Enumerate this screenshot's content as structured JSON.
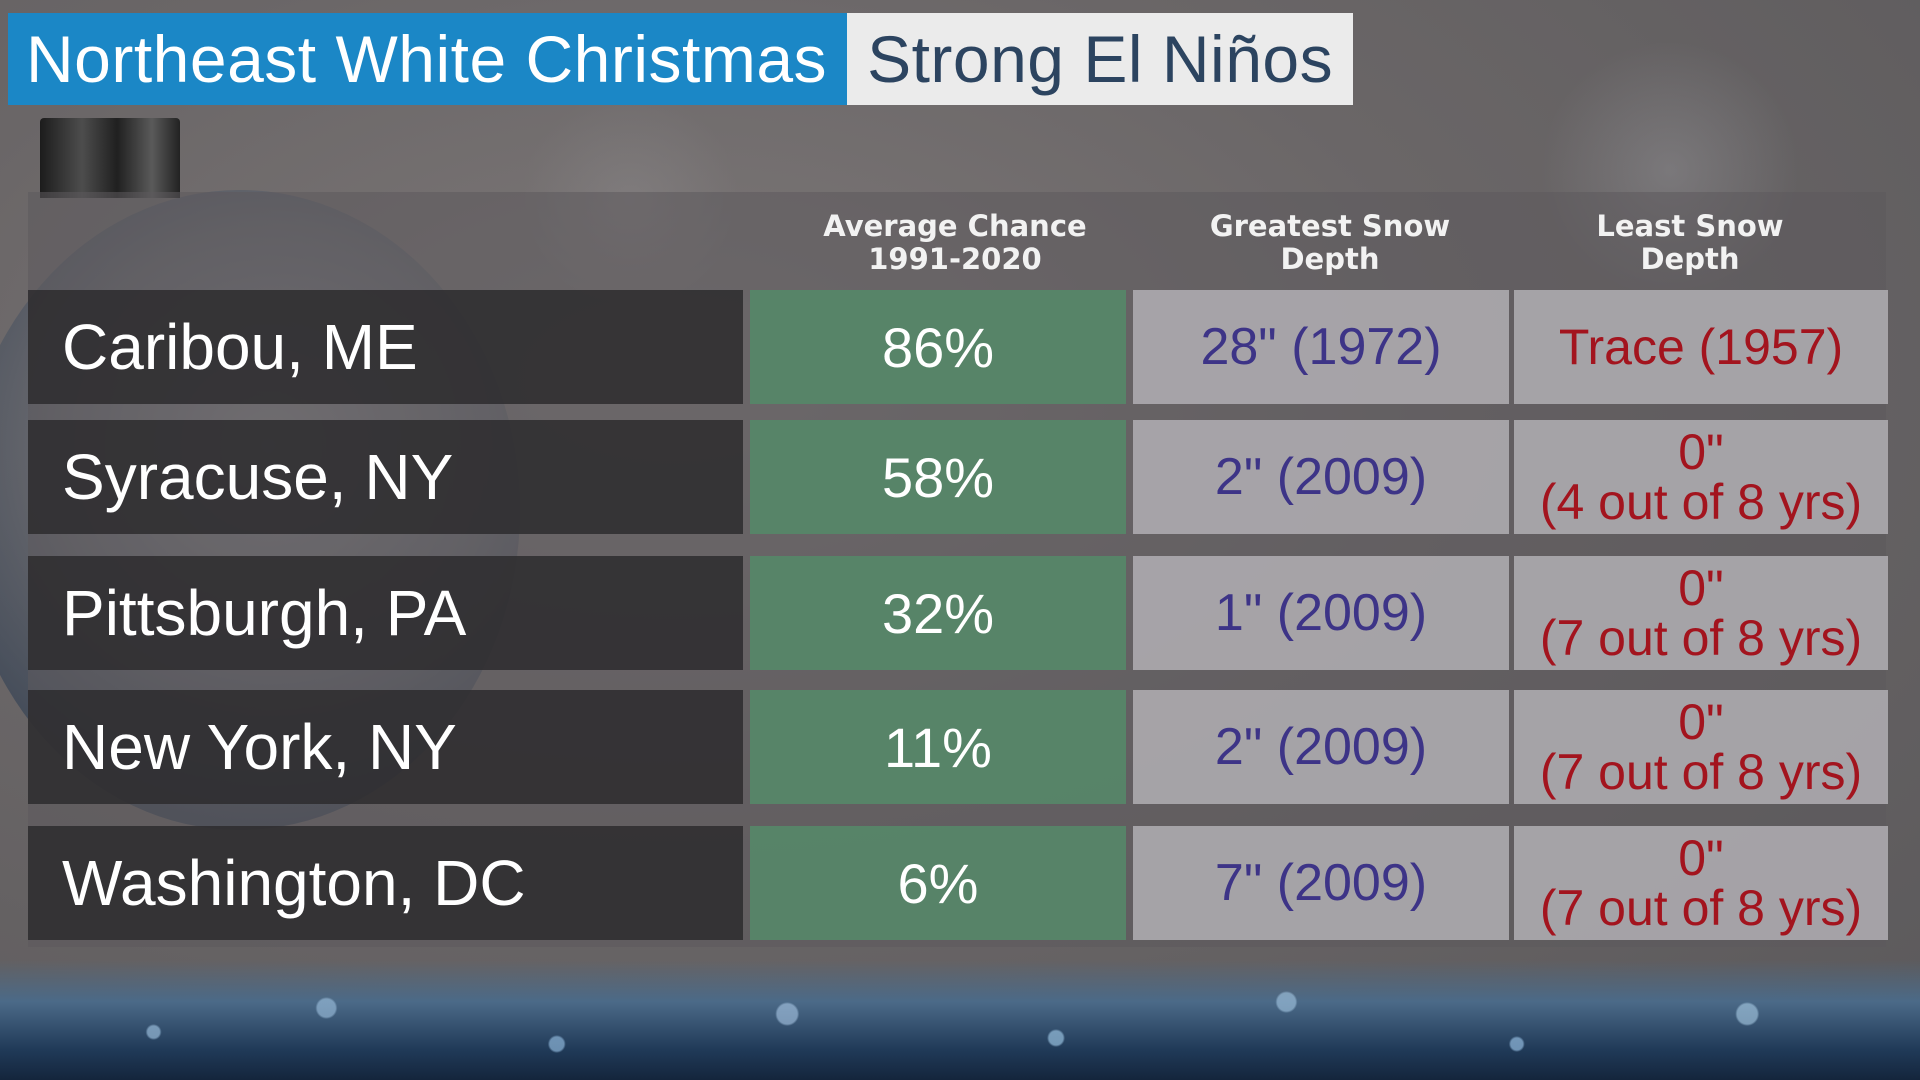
{
  "title": {
    "left": "Northeast White Christmas",
    "right": "Strong El Niños"
  },
  "chart_data": {
    "type": "table",
    "columns": [
      "",
      "Average Chance 1991-2020",
      "Greatest Snow Depth",
      "Least Snow Depth"
    ],
    "headers": {
      "chance": [
        "Average Chance",
        "1991-2020"
      ],
      "greatest": [
        "Greatest Snow",
        "Depth"
      ],
      "least": [
        "Least Snow",
        "Depth"
      ]
    },
    "rows": [
      {
        "city": "Caribou, ME",
        "chance": "86%",
        "greatest": "28\" (1972)",
        "least": [
          "Trace (1957)"
        ]
      },
      {
        "city": "Syracuse, NY",
        "chance": "58%",
        "greatest": "2\" (2009)",
        "least": [
          "0\"",
          "(4 out of 8 yrs)"
        ]
      },
      {
        "city": "Pittsburgh, PA",
        "chance": "32%",
        "greatest": "1\" (2009)",
        "least": [
          "0\"",
          "(7 out of 8 yrs)"
        ]
      },
      {
        "city": "New York, NY",
        "chance": "11%",
        "greatest": "2\" (2009)",
        "least": [
          "0\"",
          "(7 out of 8 yrs)"
        ]
      },
      {
        "city": "Washington, DC",
        "chance": "6%",
        "greatest": "7\" (2009)",
        "least": [
          "0\"",
          "(7 out of 8 yrs)"
        ]
      }
    ]
  },
  "colors": {
    "title_left_bg": "#1b87c6",
    "title_right_bg": "#ebebeb",
    "chance_bg": "#568668",
    "greatest_text": "#3d3487",
    "least_text": "#a3141e"
  }
}
